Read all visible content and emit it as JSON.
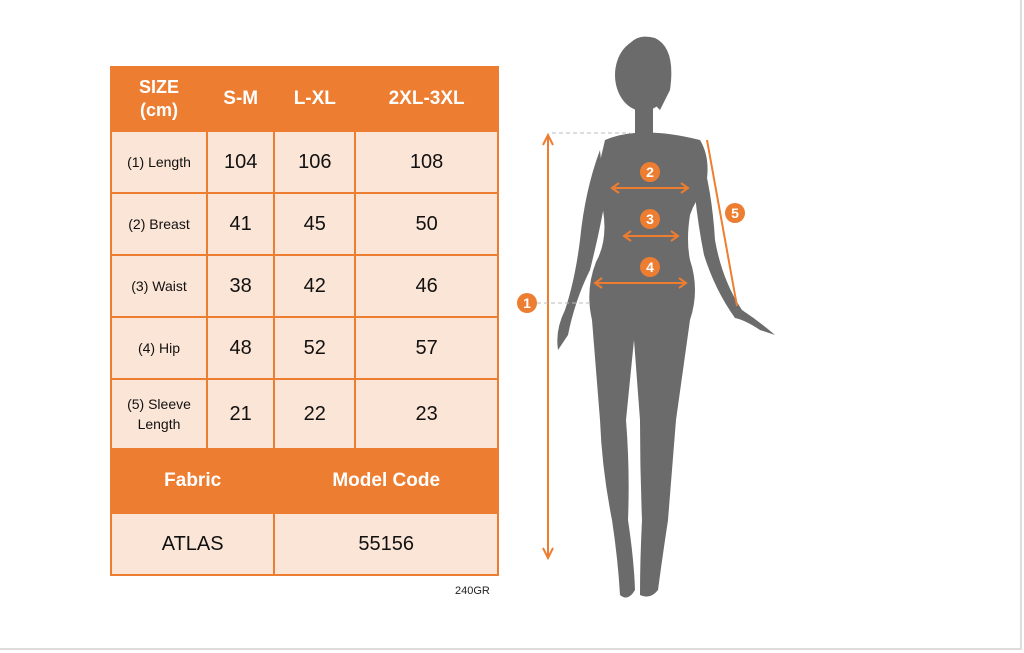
{
  "table": {
    "header": [
      "SIZE\n(cm)",
      "S-M",
      "L-XL",
      "2XL-3XL"
    ],
    "header_size_line1": "SIZE",
    "header_size_line2": "(cm)",
    "rows": [
      {
        "label": "(1) Length",
        "values": [
          "104",
          "106",
          "108"
        ]
      },
      {
        "label": "(2) Breast",
        "values": [
          "41",
          "45",
          "50"
        ]
      },
      {
        "label": "(3) Waist",
        "values": [
          "38",
          "42",
          "46"
        ]
      },
      {
        "label": "(4) Hip",
        "values": [
          "48",
          "52",
          "57"
        ]
      },
      {
        "label": "(5) Sleeve Length",
        "values": [
          "21",
          "22",
          "23"
        ]
      }
    ],
    "fabric_label": "Fabric",
    "model_code_label": "Model Code",
    "fabric_value": "ATLAS",
    "model_code_value": "55156"
  },
  "note": "240GR",
  "figure": {
    "markers": [
      "1",
      "2",
      "3",
      "4",
      "5"
    ]
  },
  "colors": {
    "accent": "#ed7d31",
    "cell": "#fbe5d6",
    "silhouette": "#6b6b6b"
  }
}
